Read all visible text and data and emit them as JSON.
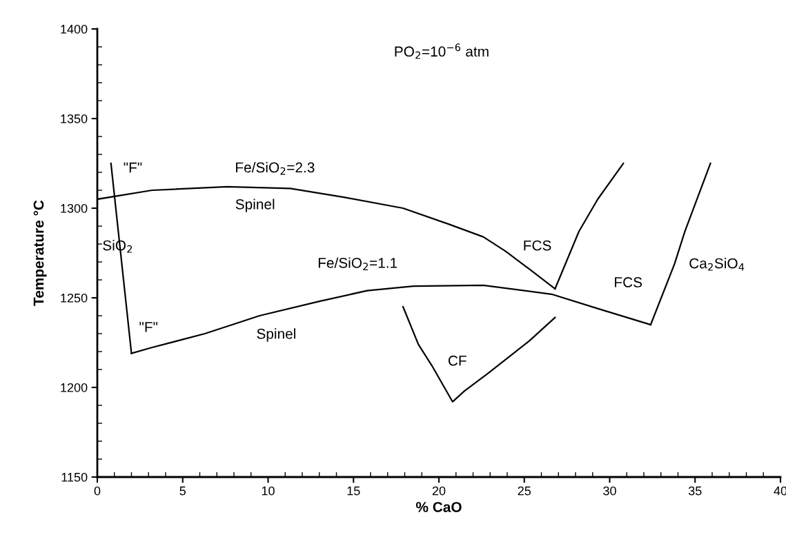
{
  "chart_data": {
    "type": "line",
    "xlabel": "% CaO",
    "ylabel": "Temperature °C",
    "xlim": [
      0,
      40
    ],
    "ylim": [
      1150,
      1400
    ],
    "xticks": [
      0,
      {
        "value": 1,
        "label": null
      },
      {
        "value": 2,
        "label": null
      },
      {
        "value": 3,
        "label": null
      },
      {
        "value": 4,
        "label": null
      },
      5,
      {
        "value": 6,
        "label": null
      },
      {
        "value": 7,
        "label": null
      },
      {
        "value": 8,
        "label": null
      },
      {
        "value": 9,
        "label": null
      },
      10,
      {
        "value": 11,
        "label": null
      },
      {
        "value": 12,
        "label": null
      },
      {
        "value": 13,
        "label": null
      },
      {
        "value": 14,
        "label": null
      },
      15,
      {
        "value": 16,
        "label": null
      },
      {
        "value": 17,
        "label": null
      },
      {
        "value": 18,
        "label": null
      },
      {
        "value": 19,
        "label": null
      },
      20,
      {
        "value": 21,
        "label": null
      },
      {
        "value": 22,
        "label": null
      },
      {
        "value": 23,
        "label": null
      },
      {
        "value": 24,
        "label": null
      },
      25,
      {
        "value": 26,
        "label": null
      },
      {
        "value": 27,
        "label": null
      },
      {
        "value": 28,
        "label": null
      },
      {
        "value": 29,
        "label": null
      },
      30,
      {
        "value": 31,
        "label": null
      },
      {
        "value": 32,
        "label": null
      },
      {
        "value": 33,
        "label": null
      },
      {
        "value": 34,
        "label": null
      },
      35,
      {
        "value": 36,
        "label": null
      },
      {
        "value": 37,
        "label": null
      },
      {
        "value": 38,
        "label": null
      },
      {
        "value": 39,
        "label": null
      },
      40
    ],
    "yticks": [
      1150,
      {
        "value": 1160,
        "label": null
      },
      {
        "value": 1170,
        "label": null
      },
      {
        "value": 1180,
        "label": null
      },
      {
        "value": 1190,
        "label": null
      },
      1200,
      {
        "value": 1210,
        "label": null
      },
      {
        "value": 1220,
        "label": null
      },
      {
        "value": 1230,
        "label": null
      },
      {
        "value": 1240,
        "label": null
      },
      1250,
      {
        "value": 1260,
        "label": null
      },
      {
        "value": 1270,
        "label": null
      },
      {
        "value": 1280,
        "label": null
      },
      {
        "value": 1290,
        "label": null
      },
      1300,
      {
        "value": 1310,
        "label": null
      },
      {
        "value": 1320,
        "label": null
      },
      {
        "value": 1330,
        "label": null
      },
      {
        "value": 1340,
        "label": null
      },
      1350,
      {
        "value": 1360,
        "label": null
      },
      {
        "value": 1370,
        "label": null
      },
      {
        "value": 1380,
        "label": null
      },
      {
        "value": 1390,
        "label": null
      },
      1400
    ],
    "grid": false,
    "marker": "none",
    "line_style": "solid",
    "series": [
      {
        "color": "#000000",
        "x": [
          0.8,
          2.0
        ],
        "values": [
          1325,
          1219
        ]
      },
      {
        "color": "#000000",
        "x": [
          2.0,
          3.1,
          6.3,
          9.5,
          13.0,
          15.8,
          18.5,
          22.6,
          26.6,
          29.3,
          32.4
        ],
        "values": [
          1219,
          1222,
          1230,
          1240,
          1248,
          1254,
          1256.5,
          1257,
          1252,
          1244,
          1235
        ]
      },
      {
        "color": "#000000",
        "x": [
          0,
          3.2,
          7.6,
          11.3,
          14.5,
          17.9,
          20.6,
          22.6,
          23.9,
          25.3,
          26.8
        ],
        "values": [
          1305,
          1310,
          1312,
          1311,
          1306,
          1300,
          1291,
          1284,
          1276,
          1266,
          1255
        ]
      },
      {
        "color": "#000000",
        "x": [
          26.8,
          28.2,
          29.3,
          30.8
        ],
        "values": [
          1255,
          1287,
          1305,
          1325
        ]
      },
      {
        "color": "#000000",
        "x": [
          32.4,
          33.8,
          34.4,
          35.9
        ],
        "values": [
          1235,
          1269,
          1287,
          1325
        ]
      },
      {
        "color": "#000000",
        "x": [
          17.9,
          18.8,
          19.6,
          20.8,
          21.5,
          22.9,
          25.3,
          26.8
        ],
        "values": [
          1245,
          1224,
          1212,
          1192,
          1198,
          1208,
          1226,
          1239
        ]
      }
    ],
    "annotations": [
      "PO$_{2}$=10$^{−6}$ atm",
      "\"F\"",
      "Fe/SiO$_{2}$=2.3",
      "Spinel",
      "SiO$_{2}$",
      "Fe/SiO$_{2}$=1.1",
      "FCS",
      "FCS",
      "Ca$_{2}$SiO$_{4}$",
      "\"F\"",
      "Spinel",
      "CF"
    ]
  }
}
